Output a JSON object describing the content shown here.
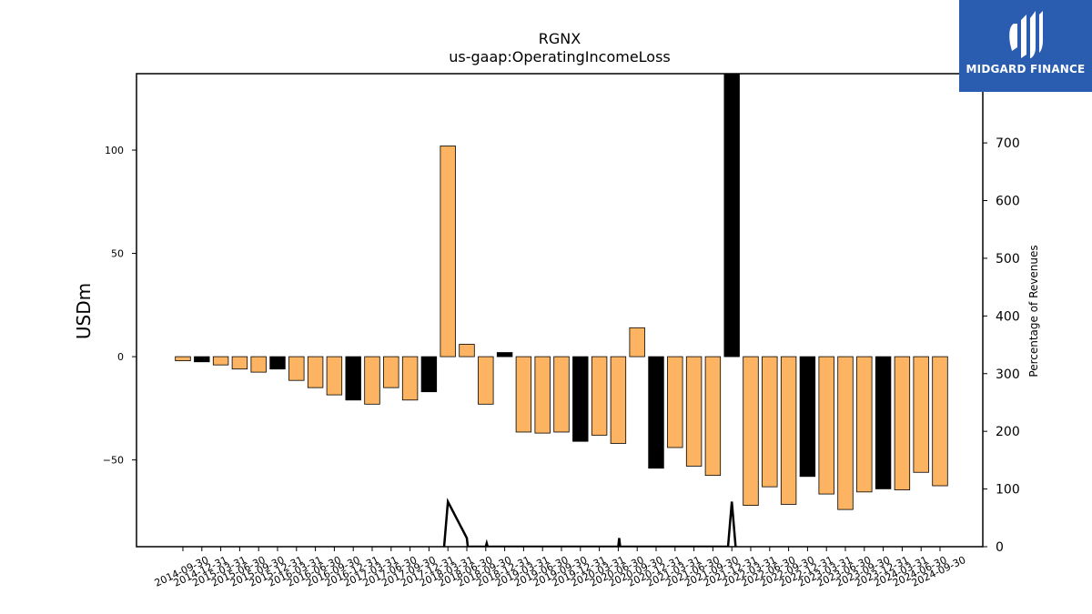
{
  "chart_data": {
    "type": "bar",
    "title": "RGNX",
    "subtitle": "us-gaap:OperatingIncomeLoss",
    "ylabel": "USDm",
    "y2label": "Percentage of Revenues",
    "ylim": [
      -92,
      137
    ],
    "y2lim": [
      0,
      820
    ],
    "yticks": [
      -50,
      0,
      50,
      100
    ],
    "y2ticks": [
      0,
      100,
      200,
      300,
      400,
      500,
      600,
      700,
      800
    ],
    "categories": [
      "2014-09-30",
      "2014-12-31",
      "2015-03-31",
      "2015-06-30",
      "2015-09-30",
      "2015-12-31",
      "2016-03-31",
      "2016-06-30",
      "2016-09-30",
      "2016-12-31",
      "2017-03-31",
      "2017-06-30",
      "2017-09-30",
      "2017-12-31",
      "2018-03-31",
      "2018-06-30",
      "2018-09-30",
      "2018-12-31",
      "2019-03-31",
      "2019-06-30",
      "2019-09-30",
      "2019-12-31",
      "2020-03-31",
      "2020-06-30",
      "2020-09-30",
      "2020-12-31",
      "2021-03-31",
      "2021-06-30",
      "2021-09-30",
      "2021-12-31",
      "2022-03-31",
      "2022-06-30",
      "2022-09-30",
      "2022-12-31",
      "2023-03-31",
      "2023-06-30",
      "2023-09-30",
      "2023-12-31",
      "2024-03-31",
      "2024-06-30",
      "2024-09-30"
    ],
    "values": [
      -2,
      -2.5,
      -4,
      -6,
      -7.5,
      -6,
      -11.5,
      -15,
      -18.5,
      -21,
      -23,
      -15,
      -21,
      -17,
      102,
      6,
      -23,
      2,
      -36.5,
      -37,
      -36.5,
      -41,
      -38,
      -42,
      14,
      -54,
      -44,
      -53,
      -57.5,
      137,
      -72,
      -63,
      -71.5,
      -58,
      -66.5,
      -74,
      -65.5,
      -64,
      -64.5,
      -56,
      -62.5
    ],
    "bar_colors": [
      "orange",
      "black",
      "orange",
      "orange",
      "orange",
      "black",
      "orange",
      "orange",
      "orange",
      "black",
      "orange",
      "orange",
      "orange",
      "black",
      "orange",
      "orange",
      "orange",
      "black",
      "orange",
      "orange",
      "orange",
      "black",
      "orange",
      "orange",
      "orange",
      "black",
      "orange",
      "orange",
      "orange",
      "black",
      "orange",
      "orange",
      "orange",
      "black",
      "orange",
      "orange",
      "orange",
      "black",
      "orange",
      "orange",
      "orange"
    ],
    "line_series": {
      "name": "Percentage of Revenues",
      "x": [
        13.8,
        14,
        15,
        15.05,
        16,
        16.05,
        16.1,
        23,
        23.05,
        23.1,
        28.8,
        29,
        29.2
      ],
      "y": [
        0,
        78,
        15,
        0,
        0,
        6,
        0,
        0,
        15,
        0,
        0,
        78,
        0
      ]
    },
    "colors": {
      "orange": "#fdb462",
      "black": "#000000",
      "line": "#000000"
    },
    "grid": false,
    "legend": "none"
  },
  "watermark": {
    "brand": "MIDGARD FINANCE",
    "background": "#2a5db0"
  }
}
